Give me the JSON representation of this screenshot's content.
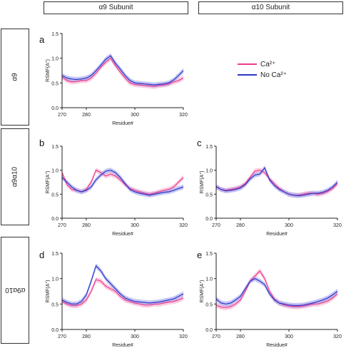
{
  "headers": {
    "col1": "α9 Subunit",
    "col2": "α10 Subunit"
  },
  "rows": {
    "r1": "α9",
    "r2": "α9α10",
    "r3": "α9α10"
  },
  "legend": {
    "ca": "Ca²⁺",
    "noca": "No Ca²⁺"
  },
  "colors": {
    "ca": "#ee3c8e",
    "ca_band": "#f7a8c9",
    "noca": "#2b35c9",
    "noca_band": "#9ea3ee"
  },
  "chart_data": [
    {
      "panel": "a",
      "type": "line",
      "xlabel": "Residue#",
      "ylabel": "RSMF(A°)",
      "xlim": [
        270,
        320
      ],
      "ylim": [
        0.0,
        1.5
      ],
      "xticks": [
        270,
        280,
        300,
        320
      ],
      "yticks": [
        0.0,
        0.5,
        1.0,
        1.5
      ],
      "x": [
        270,
        272,
        274,
        276,
        278,
        280,
        282,
        284,
        286,
        288,
        290,
        292,
        294,
        296,
        298,
        300,
        302,
        304,
        306,
        308,
        310,
        312,
        314,
        316,
        318,
        320
      ],
      "series": [
        {
          "name": "Ca²⁺",
          "values": [
            0.62,
            0.55,
            0.52,
            0.53,
            0.55,
            0.55,
            0.6,
            0.7,
            0.82,
            0.92,
            1.0,
            0.85,
            0.72,
            0.6,
            0.5,
            0.47,
            0.46,
            0.45,
            0.44,
            0.43,
            0.45,
            0.46,
            0.48,
            0.52,
            0.55,
            0.6
          ]
        },
        {
          "name": "No Ca²⁺",
          "values": [
            0.65,
            0.6,
            0.58,
            0.57,
            0.58,
            0.6,
            0.65,
            0.75,
            0.86,
            0.98,
            1.05,
            0.9,
            0.78,
            0.65,
            0.55,
            0.5,
            0.49,
            0.48,
            0.47,
            0.46,
            0.47,
            0.48,
            0.5,
            0.56,
            0.65,
            0.75
          ]
        }
      ]
    },
    {
      "panel": "b",
      "type": "line",
      "xlabel": "Residue#",
      "ylabel": "RSMF(A°)",
      "xlim": [
        270,
        320
      ],
      "ylim": [
        0.0,
        1.5
      ],
      "xticks": [
        270,
        280,
        300,
        320
      ],
      "yticks": [
        0.0,
        0.5,
        1.0,
        1.5
      ],
      "x": [
        270,
        272,
        274,
        276,
        278,
        280,
        282,
        284,
        286,
        288,
        290,
        292,
        294,
        296,
        298,
        300,
        302,
        304,
        306,
        308,
        310,
        312,
        314,
        316,
        318,
        320
      ],
      "series": [
        {
          "name": "Ca²⁺",
          "values": [
            0.95,
            0.7,
            0.6,
            0.58,
            0.55,
            0.6,
            0.75,
            1.0,
            0.95,
            0.88,
            0.92,
            0.88,
            0.8,
            0.7,
            0.62,
            0.58,
            0.55,
            0.52,
            0.5,
            0.52,
            0.55,
            0.58,
            0.6,
            0.65,
            0.75,
            0.85
          ]
        },
        {
          "name": "No Ca²⁺",
          "values": [
            0.85,
            0.75,
            0.65,
            0.58,
            0.55,
            0.58,
            0.65,
            0.8,
            0.9,
            0.98,
            1.0,
            0.95,
            0.85,
            0.72,
            0.6,
            0.55,
            0.52,
            0.5,
            0.48,
            0.5,
            0.52,
            0.54,
            0.55,
            0.58,
            0.62,
            0.65
          ]
        }
      ]
    },
    {
      "panel": "c",
      "type": "line",
      "xlabel": "Residue#",
      "ylabel": "RSMF(A°)",
      "xlim": [
        270,
        320
      ],
      "ylim": [
        0.0,
        1.5
      ],
      "xticks": [
        270,
        280,
        300,
        320
      ],
      "yticks": [
        0.0,
        0.5,
        1.0,
        1.5
      ],
      "x": [
        270,
        272,
        274,
        276,
        278,
        280,
        282,
        284,
        286,
        288,
        290,
        292,
        294,
        296,
        298,
        300,
        302,
        304,
        306,
        308,
        310,
        312,
        314,
        316,
        318,
        320
      ],
      "series": [
        {
          "name": "Ca²⁺",
          "values": [
            0.65,
            0.6,
            0.58,
            0.6,
            0.62,
            0.65,
            0.72,
            0.85,
            0.98,
            1.0,
            0.95,
            0.82,
            0.72,
            0.62,
            0.55,
            0.5,
            0.48,
            0.48,
            0.5,
            0.52,
            0.52,
            0.5,
            0.52,
            0.56,
            0.62,
            0.72
          ]
        },
        {
          "name": "No Ca²⁺",
          "values": [
            0.66,
            0.6,
            0.57,
            0.58,
            0.6,
            0.63,
            0.7,
            0.82,
            0.9,
            0.92,
            1.05,
            0.8,
            0.68,
            0.6,
            0.55,
            0.5,
            0.48,
            0.47,
            0.48,
            0.5,
            0.52,
            0.52,
            0.54,
            0.58,
            0.65,
            0.75
          ]
        }
      ]
    },
    {
      "panel": "d",
      "type": "line",
      "xlabel": "Residue#",
      "ylabel": "RSMF(A°)",
      "xlim": [
        270,
        320
      ],
      "ylim": [
        0.0,
        1.5
      ],
      "xticks": [
        270,
        280,
        300,
        320
      ],
      "yticks": [
        0.0,
        0.5,
        1.0,
        1.5
      ],
      "x": [
        270,
        272,
        274,
        276,
        278,
        280,
        282,
        284,
        286,
        288,
        290,
        292,
        294,
        296,
        298,
        300,
        302,
        304,
        306,
        308,
        310,
        312,
        314,
        316,
        318,
        320
      ],
      "series": [
        {
          "name": "Ca²⁺",
          "values": [
            0.55,
            0.5,
            0.47,
            0.47,
            0.5,
            0.58,
            0.75,
            0.98,
            0.95,
            0.85,
            0.8,
            0.75,
            0.65,
            0.58,
            0.55,
            0.52,
            0.5,
            0.48,
            0.48,
            0.5,
            0.5,
            0.52,
            0.54,
            0.55,
            0.58,
            0.62
          ]
        },
        {
          "name": "No Ca²⁺",
          "values": [
            0.58,
            0.53,
            0.5,
            0.5,
            0.55,
            0.68,
            0.95,
            1.25,
            1.15,
            1.0,
            0.9,
            0.8,
            0.7,
            0.62,
            0.58,
            0.55,
            0.54,
            0.53,
            0.52,
            0.53,
            0.54,
            0.56,
            0.58,
            0.6,
            0.65,
            0.7
          ]
        }
      ]
    },
    {
      "panel": "e",
      "type": "line",
      "xlabel": "Residue#",
      "ylabel": "RSMF(A°)",
      "xlim": [
        270,
        320
      ],
      "ylim": [
        0.0,
        1.5
      ],
      "xticks": [
        270,
        280,
        300,
        320
      ],
      "yticks": [
        0.0,
        0.5,
        1.0,
        1.5
      ],
      "x": [
        270,
        272,
        274,
        276,
        278,
        280,
        282,
        284,
        286,
        288,
        290,
        292,
        294,
        296,
        298,
        300,
        302,
        304,
        306,
        308,
        310,
        312,
        314,
        316,
        318,
        320
      ],
      "series": [
        {
          "name": "Ca²⁺",
          "values": [
            0.48,
            0.44,
            0.43,
            0.45,
            0.5,
            0.58,
            0.75,
            0.95,
            1.05,
            1.15,
            1.0,
            0.75,
            0.6,
            0.52,
            0.48,
            0.46,
            0.45,
            0.45,
            0.46,
            0.48,
            0.5,
            0.5,
            0.53,
            0.56,
            0.62,
            0.7
          ]
        },
        {
          "name": "No Ca²⁺",
          "values": [
            0.6,
            0.52,
            0.5,
            0.52,
            0.58,
            0.65,
            0.8,
            0.95,
            1.0,
            0.95,
            0.88,
            0.7,
            0.58,
            0.52,
            0.5,
            0.48,
            0.47,
            0.47,
            0.48,
            0.5,
            0.52,
            0.55,
            0.58,
            0.62,
            0.68,
            0.75
          ]
        }
      ]
    }
  ]
}
